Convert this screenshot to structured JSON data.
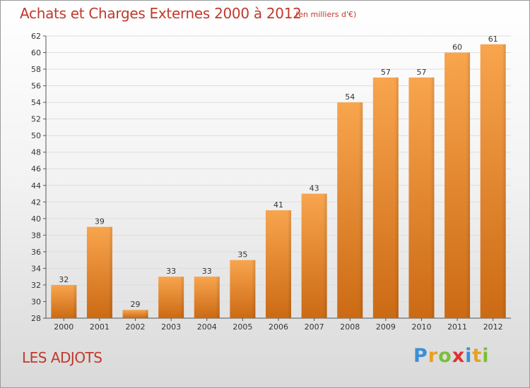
{
  "title": "Achats et Charges Externes 2000 à 2012",
  "subtitle": "(en milliers d'€)",
  "place": "LES ADJOTS",
  "logo": {
    "letters": [
      {
        "ch": "P",
        "color": "#3b8fd6"
      },
      {
        "ch": "r",
        "color": "#e8a020"
      },
      {
        "ch": "o",
        "color": "#7cbf3a"
      },
      {
        "ch": "x",
        "color": "#e03030"
      },
      {
        "ch": "i",
        "color": "#3b8fd6"
      },
      {
        "ch": "t",
        "color": "#e8a020"
      },
      {
        "ch": "i",
        "color": "#7cbf3a"
      }
    ]
  },
  "colors": {
    "title": "#c0392b",
    "bar_light": "#f8a54e",
    "bar_dark": "#cc6a14",
    "grid": "#dddddd",
    "axis": "#555555"
  },
  "chart_data": {
    "type": "bar",
    "categories": [
      "2000",
      "2001",
      "2002",
      "2003",
      "2004",
      "2005",
      "2006",
      "2007",
      "2008",
      "2009",
      "2010",
      "2011",
      "2012"
    ],
    "values": [
      32,
      39,
      29,
      33,
      33,
      35,
      41,
      43,
      54,
      57,
      57,
      60,
      61
    ],
    "data_labels": [
      "32",
      "39",
      "29",
      "33",
      "33",
      "35",
      "41",
      "43",
      "54",
      "57",
      "57",
      "60",
      "61"
    ],
    "ylim": [
      28,
      62
    ],
    "yticks": [
      28,
      30,
      32,
      34,
      36,
      38,
      40,
      42,
      44,
      46,
      48,
      50,
      52,
      54,
      56,
      58,
      60,
      62
    ],
    "grid": true,
    "legend": "none"
  }
}
